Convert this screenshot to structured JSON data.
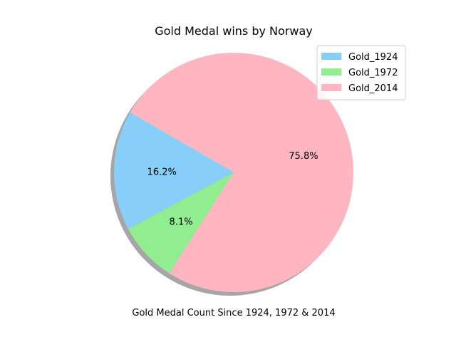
{
  "chart_data": {
    "type": "pie",
    "title": "Gold Medal wins by Norway",
    "xlabel": "Gold Medal Count Since 1924, 1972 & 2014",
    "labels": [
      "Gold_1924",
      "Gold_1972",
      "Gold_2014"
    ],
    "values": [
      16.2,
      8.1,
      75.8
    ],
    "value_labels": [
      "16.2%",
      "8.1%",
      "75.8%"
    ],
    "colors": [
      "#87cefa",
      "#90ee90",
      "#ffb6c1"
    ],
    "start_angle": 150,
    "shadow": true,
    "legend_position": "top-right"
  }
}
